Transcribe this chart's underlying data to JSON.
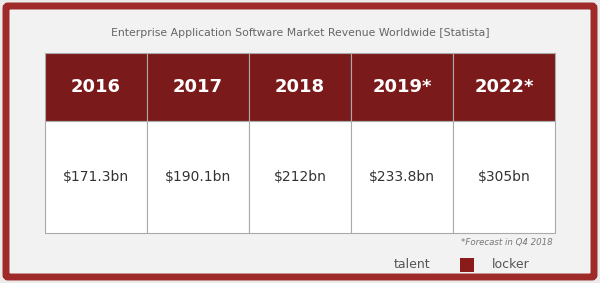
{
  "title": "Enterprise Application Software Market Revenue Worldwide [Statista]",
  "years": [
    "2016",
    "2017",
    "2018",
    "2019*",
    "2022*"
  ],
  "values": [
    "$171.3bn",
    "$190.1bn",
    "$212bn",
    "$233.8bn",
    "$305bn"
  ],
  "footnote": "*Forecast in Q4 2018",
  "header_bg": "#7b1a1a",
  "header_text": "#ffffff",
  "cell_bg": "#ffffff",
  "cell_text": "#333333",
  "outer_border": "#9e2a2a",
  "inner_border": "#aaaaaa",
  "background": "#ebebeb",
  "inner_bg": "#f2f2f2",
  "title_color": "#666666",
  "footnote_color": "#777777",
  "logo_talent_color": "#555555",
  "logo_locker_color": "#555555",
  "logo_box_color": "#8b1a1a"
}
